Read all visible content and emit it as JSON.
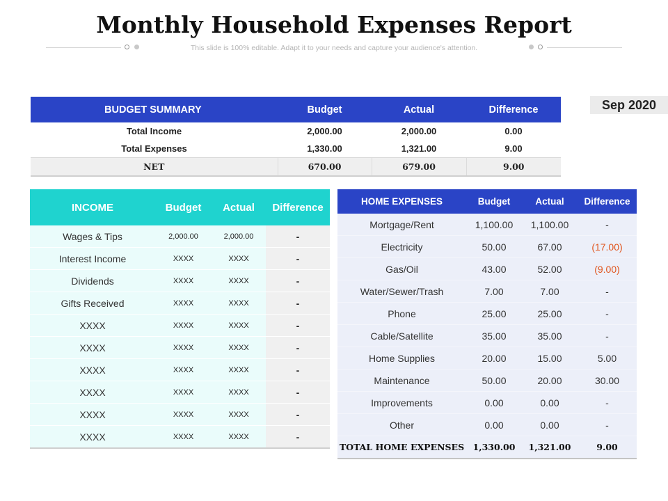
{
  "title": "Monthly Household Expenses Report",
  "subtitle": "This slide is 100% editable. Adapt it to your needs and capture your audience's attention.",
  "date_label": "Sep 2020",
  "budget_summary": {
    "headers": [
      "BUDGET SUMMARY",
      "Budget",
      "Actual",
      "Difference"
    ],
    "rows": [
      [
        "Total Income",
        "2,000.00",
        "2,000.00",
        "0.00"
      ],
      [
        "Total Expenses",
        "1,330.00",
        "1,321.00",
        "9.00"
      ],
      [
        "NET",
        "670.00",
        "679.00",
        "9.00"
      ]
    ]
  },
  "income": {
    "headers": [
      "INCOME",
      "Budget",
      "Actual",
      "Difference"
    ],
    "rows": [
      [
        "Wages & Tips",
        "2,000.00",
        "2,000.00",
        "-"
      ],
      [
        "Interest Income",
        "XXXX",
        "XXXX",
        "-"
      ],
      [
        "Dividends",
        "XXXX",
        "XXXX",
        "-"
      ],
      [
        "Gifts Received",
        "XXXX",
        "XXXX",
        "-"
      ],
      [
        "XXXX",
        "XXXX",
        "XXXX",
        "-"
      ],
      [
        "XXXX",
        "XXXX",
        "XXXX",
        "-"
      ],
      [
        "XXXX",
        "XXXX",
        "XXXX",
        "-"
      ],
      [
        "XXXX",
        "XXXX",
        "XXXX",
        "-"
      ],
      [
        "XXXX",
        "XXXX",
        "XXXX",
        "-"
      ],
      [
        "XXXX",
        "XXXX",
        "XXXX",
        "-"
      ]
    ]
  },
  "home_expenses": {
    "headers": [
      "HOME EXPENSES",
      "Budget",
      "Actual",
      "Difference"
    ],
    "rows": [
      [
        "Mortgage/Rent",
        "1,100.00",
        "1,100.00",
        "-"
      ],
      [
        "Electricity",
        "50.00",
        "67.00",
        "(17.00)"
      ],
      [
        "Gas/Oil",
        "43.00",
        "52.00",
        "(9.00)"
      ],
      [
        "Water/Sewer/Trash",
        "7.00",
        "7.00",
        "-"
      ],
      [
        "Phone",
        "25.00",
        "25.00",
        "-"
      ],
      [
        "Cable/Satellite",
        "35.00",
        "35.00",
        "-"
      ],
      [
        "Home Supplies",
        "20.00",
        "15.00",
        "5.00"
      ],
      [
        "Maintenance",
        "50.00",
        "20.00",
        "30.00"
      ],
      [
        "Improvements",
        "0.00",
        "0.00",
        "-"
      ],
      [
        "Other",
        "0.00",
        "0.00",
        "-"
      ]
    ],
    "total": [
      "TOTAL HOME EXPENSES",
      "1,330.00",
      "1,321.00",
      "9.00"
    ]
  },
  "colors": {
    "blue_header": "#2a44c6",
    "teal_header": "#1fd3cf",
    "negative": "#e0541c"
  }
}
